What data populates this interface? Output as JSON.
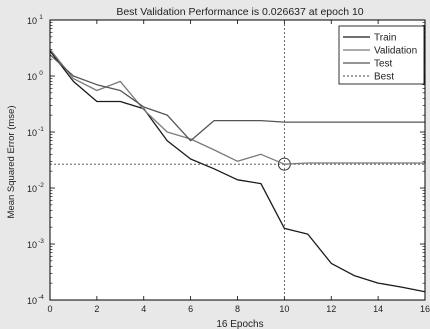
{
  "chart_data": {
    "type": "line",
    "title": "Best Validation Performance is 0.026637 at epoch 10",
    "xlabel": "16 Epochs",
    "ylabel": "Mean Squared Error  (mse)",
    "xlim": [
      0,
      16
    ],
    "ylim": [
      0.0001,
      10
    ],
    "yscale": "log",
    "grid": false,
    "legend_position": "top-right",
    "xticks": [
      "0",
      "2",
      "4",
      "6",
      "8",
      "10",
      "12",
      "14",
      "16"
    ],
    "yticks": [
      {
        "base": "10",
        "exp": "1",
        "value": 10
      },
      {
        "base": "10",
        "exp": "0",
        "value": 1
      },
      {
        "base": "10",
        "exp": "-1",
        "value": 0.1
      },
      {
        "base": "10",
        "exp": "-2",
        "value": 0.01
      },
      {
        "base": "10",
        "exp": "-3",
        "value": 0.001
      },
      {
        "base": "10",
        "exp": "-4",
        "value": 0.0001
      }
    ],
    "x": [
      0,
      1,
      2,
      3,
      4,
      5,
      6,
      7,
      8,
      9,
      10,
      11,
      12,
      13,
      14,
      15,
      16
    ],
    "series": [
      {
        "name": "Train",
        "color": "#1a1a1a",
        "style": "solid",
        "values": [
          2.8,
          0.8,
          0.35,
          0.35,
          0.26,
          0.07,
          0.033,
          0.022,
          0.014,
          0.012,
          0.0019,
          0.0015,
          0.00045,
          0.00027,
          0.0002,
          0.00017,
          0.00014
        ]
      },
      {
        "name": "Validation",
        "color": "#7a7a7a",
        "style": "solid",
        "values": [
          3.0,
          0.9,
          0.55,
          0.8,
          0.25,
          0.1,
          0.075,
          0.048,
          0.03,
          0.04,
          0.026637,
          0.028,
          0.028,
          0.028,
          0.028,
          0.028,
          0.028
        ]
      },
      {
        "name": "Test",
        "color": "#555555",
        "style": "solid",
        "values": [
          2.4,
          1.0,
          0.7,
          0.55,
          0.28,
          0.2,
          0.07,
          0.16,
          0.16,
          0.16,
          0.15,
          0.15,
          0.15,
          0.15,
          0.15,
          0.15,
          0.15
        ]
      }
    ],
    "best": {
      "name": "Best",
      "epoch": 10,
      "value": 0.026637,
      "color": "#444444",
      "style": "dotted"
    }
  }
}
